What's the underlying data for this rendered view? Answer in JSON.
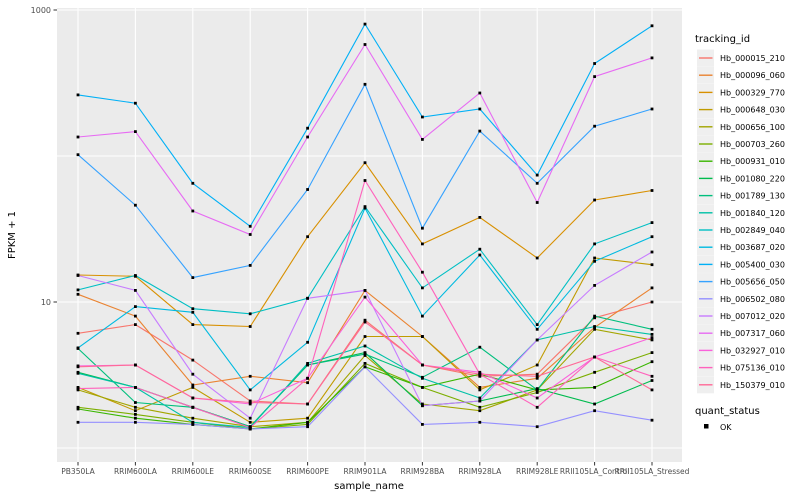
{
  "figure": {
    "background": "#FFFFFF",
    "panel_background": "#EBEBEB",
    "grid_color": "#FFFFFF",
    "tick_label_color": "#4D4D4D",
    "axis_title_color": "#000000",
    "marker_color": "#000000",
    "legend_key_background": "#EFEFEF"
  },
  "axes": {
    "x_title": "sample_name",
    "y_title": "FPKM + 1",
    "y_tick_labels": [
      "1000",
      "10"
    ]
  },
  "legend": {
    "tracking_title": "tracking_id",
    "quant_title": "quant_status",
    "quant_ok_label": "OK"
  },
  "chart_data": {
    "type": "line",
    "title": "",
    "xlabel": "sample_name",
    "ylabel": "FPKM + 1",
    "y_scale": "log10",
    "ylim": [
      1,
      1000
    ],
    "y_breaks_labeled": [
      10,
      1000
    ],
    "y_gridlines": [
      1,
      10,
      100,
      1000
    ],
    "grid": true,
    "legend_position": "right",
    "point_marker": "small black square (quant_status OK)",
    "categories": [
      "PB350LA",
      "RRIM600LA",
      "RRIM600LE",
      "RRIM600SE",
      "RRIM600PE",
      "RRIM901LA",
      "RRIM928BA",
      "RRIM928LA",
      "RRIM928LE",
      "RRII105LA_Control",
      "RRII105LA_Stressed"
    ],
    "series": [
      {
        "name": "Hb_000015_210",
        "color": "#F8766D",
        "values": [
          6.1,
          7.0,
          4.0,
          2.1,
          2.0,
          7.5,
          3.7,
          3.1,
          3.2,
          7.8,
          10.0
        ]
      },
      {
        "name": "Hb_000096_060",
        "color": "#EA8331",
        "values": [
          11.3,
          8.0,
          2.7,
          3.1,
          2.8,
          12.0,
          5.8,
          2.6,
          3.0,
          6.7,
          12.5
        ]
      },
      {
        "name": "Hb_000329_770",
        "color": "#D89000",
        "values": [
          15.3,
          15.0,
          7.0,
          6.8,
          28.0,
          90.0,
          25.0,
          38.0,
          20.0,
          50.0,
          58.0
        ]
      },
      {
        "name": "Hb_000648_030",
        "color": "#C09B00",
        "values": [
          2.6,
          1.8,
          2.6,
          1.5,
          1.6,
          5.8,
          5.8,
          2.5,
          3.7,
          20.0,
          18.0
        ]
      },
      {
        "name": "Hb_000656_100",
        "color": "#A3A500",
        "values": [
          2.5,
          1.9,
          1.6,
          1.4,
          1.5,
          4.3,
          2.0,
          1.8,
          2.5,
          6.5,
          5.5
        ]
      },
      {
        "name": "Hb_000703_260",
        "color": "#7CAE00",
        "values": [
          1.9,
          1.7,
          1.5,
          1.35,
          1.45,
          3.8,
          2.6,
          1.9,
          2.4,
          3.3,
          4.5
        ]
      },
      {
        "name": "Hb_000931_010",
        "color": "#39B600",
        "values": [
          1.85,
          1.6,
          1.45,
          1.35,
          1.5,
          3.6,
          2.6,
          3.2,
          2.5,
          2.6,
          3.9
        ]
      },
      {
        "name": "Hb_001080_220",
        "color": "#00BB4E",
        "values": [
          3.3,
          2.6,
          1.9,
          1.4,
          3.7,
          4.5,
          1.95,
          2.1,
          2.55,
          2.0,
          2.9
        ]
      },
      {
        "name": "Hb_001789_130",
        "color": "#00BF7D",
        "values": [
          4.8,
          2.05,
          1.9,
          1.4,
          3.7,
          4.4,
          3.05,
          4.9,
          2.5,
          8.0,
          6.5
        ]
      },
      {
        "name": "Hb_001840_120",
        "color": "#00C1A7",
        "values": [
          3.25,
          2.6,
          1.5,
          1.38,
          3.8,
          5.0,
          3.0,
          2.2,
          5.5,
          6.8,
          6.0
        ]
      },
      {
        "name": "Hb_002849_040",
        "color": "#00BFC4",
        "values": [
          12.1,
          15.2,
          9.0,
          8.3,
          10.6,
          45.0,
          12.5,
          23.0,
          7.0,
          25.0,
          35.0
        ]
      },
      {
        "name": "Hb_003687_020",
        "color": "#00BAE0",
        "values": [
          4.85,
          9.3,
          8.5,
          2.5,
          5.3,
          44.0,
          8.0,
          21.0,
          6.5,
          19.0,
          28.0
        ]
      },
      {
        "name": "Hb_005400_030",
        "color": "#00B0F6",
        "values": [
          262,
          230,
          65,
          33,
          155,
          800,
          185,
          210,
          74,
          430,
          780
        ]
      },
      {
        "name": "Hb_005656_050",
        "color": "#35A2FF",
        "values": [
          102,
          46,
          14.7,
          17.8,
          59,
          310,
          32,
          148,
          65,
          160,
          210
        ]
      },
      {
        "name": "Hb_006502_080",
        "color": "#9590FF",
        "values": [
          1.5,
          1.5,
          1.45,
          1.35,
          1.4,
          3.6,
          1.45,
          1.5,
          1.4,
          1.8,
          1.55
        ]
      },
      {
        "name": "Hb_007012_020",
        "color": "#C77CFF",
        "values": [
          15.2,
          12.0,
          3.2,
          1.6,
          10.6,
          12.0,
          1.95,
          2.1,
          5.5,
          13.0,
          22.0
        ]
      },
      {
        "name": "Hb_007317_060",
        "color": "#E76BF3",
        "values": [
          135,
          147,
          42,
          29,
          135,
          580,
          130,
          270,
          48,
          350,
          470
        ]
      },
      {
        "name": "Hb_032927_010",
        "color": "#FA62DB",
        "values": [
          3.65,
          3.7,
          2.2,
          2.0,
          3.0,
          10.8,
          3.7,
          3.3,
          2.2,
          4.2,
          5.7
        ]
      },
      {
        "name": "Hb_075136_010",
        "color": "#FF62BC",
        "values": [
          2.55,
          2.6,
          1.9,
          1.38,
          3.0,
          68.0,
          16.0,
          3.2,
          1.9,
          4.2,
          3.1
        ]
      },
      {
        "name": "Hb_150379_010",
        "color": "#FF6A98",
        "values": [
          3.6,
          3.7,
          2.2,
          2.05,
          2.0,
          7.3,
          3.7,
          3.2,
          3.1,
          4.2,
          2.5
        ]
      }
    ]
  }
}
